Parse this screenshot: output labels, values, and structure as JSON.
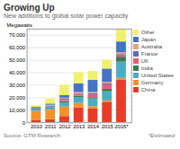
{
  "chart_data": {
    "type": "bar",
    "stacked": true,
    "title": "Growing Up",
    "subtitle": "New additions to global solar power capacity",
    "source": "Source: GTM Research",
    "annotations": [
      "*Estimated"
    ],
    "ylabel": "Megawatts",
    "categories": [
      "2010",
      "2011",
      "2012",
      "2013",
      "2014",
      "2015",
      "2016*"
    ],
    "series": [
      {
        "name": "China",
        "color": "#e83b2a",
        "values": [
          2000,
          2500,
          5000,
          12000,
          11000,
          16000,
          34000
        ]
      },
      {
        "name": "Germany",
        "color": "#f4922a",
        "values": [
          7000,
          7500,
          7600,
          3500,
          1900,
          1500,
          1500
        ]
      },
      {
        "name": "United States",
        "color": "#4bacc6",
        "values": [
          900,
          1800,
          3300,
          4700,
          6200,
          7300,
          13000
        ]
      },
      {
        "name": "India",
        "color": "#3a7a4e",
        "values": [
          200,
          400,
          1000,
          1100,
          1000,
          2000,
          4000
        ]
      },
      {
        "name": "UK",
        "color": "#e85d75",
        "values": [
          100,
          400,
          900,
          1500,
          2400,
          3500,
          2000
        ]
      },
      {
        "name": "France",
        "color": "#5a6fad",
        "values": [
          700,
          700,
          1000,
          600,
          900,
          1000,
          700
        ]
      },
      {
        "name": "Australia",
        "color": "#e8a080",
        "values": [
          400,
          700,
          900,
          800,
          800,
          900,
          900
        ]
      },
      {
        "name": "Japan",
        "color": "#4472c4",
        "values": [
          1000,
          1000,
          2000,
          6900,
          9700,
          10800,
          8600
        ]
      },
      {
        "name": "Other",
        "color": "#f0f06a",
        "values": [
          1200,
          4000,
          8300,
          8900,
          7100,
          7000,
          10300
        ]
      }
    ],
    "ylim": [
      0,
      75000
    ],
    "yticks": [
      0,
      {
        "value": 10000,
        "label": "10,000"
      },
      {
        "value": 20000,
        "label": "20,000"
      },
      {
        "value": 30000,
        "label": "30,000"
      },
      {
        "value": 40000,
        "label": "40,000"
      },
      {
        "value": 50000,
        "label": "50,000"
      },
      {
        "value": 60000,
        "label": "60,000"
      },
      {
        "value": 70000,
        "label": "70,000"
      }
    ],
    "grid": true,
    "legend": "right"
  }
}
